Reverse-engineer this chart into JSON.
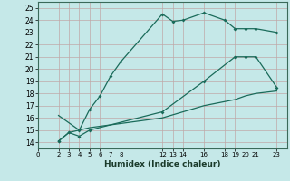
{
  "title": "",
  "xlabel": "Humidex (Indice chaleur)",
  "bg_color": "#c5e8e8",
  "grid_color": "#b0d0d0",
  "line_color": "#1a6b5a",
  "line1": {
    "x": [
      2,
      3,
      4,
      5,
      6,
      7,
      8,
      12,
      13,
      14,
      16,
      18,
      19,
      20,
      21,
      23
    ],
    "y": [
      14.1,
      14.8,
      15.0,
      16.7,
      17.8,
      19.4,
      20.6,
      24.5,
      23.9,
      24.0,
      24.6,
      24.0,
      23.3,
      23.3,
      23.3,
      23.0
    ]
  },
  "line2": {
    "x": [
      2,
      3,
      4,
      5,
      12,
      16,
      19,
      20,
      21,
      23
    ],
    "y": [
      14.1,
      14.8,
      14.5,
      15.0,
      16.5,
      19.0,
      21.0,
      21.0,
      21.0,
      18.5
    ]
  },
  "line3": {
    "x": [
      2,
      4,
      5,
      12,
      16,
      19,
      20,
      21,
      23
    ],
    "y": [
      16.2,
      15.0,
      15.2,
      16.0,
      17.0,
      17.5,
      17.8,
      18.0,
      18.2
    ]
  },
  "xlim": [
    0,
    24
  ],
  "ylim": [
    13.5,
    25.5
  ],
  "xticks": [
    0,
    2,
    3,
    4,
    5,
    6,
    7,
    8,
    12,
    13,
    14,
    16,
    18,
    19,
    20,
    21,
    23
  ],
  "yticks": [
    14,
    15,
    16,
    17,
    18,
    19,
    20,
    21,
    22,
    23,
    24,
    25
  ]
}
